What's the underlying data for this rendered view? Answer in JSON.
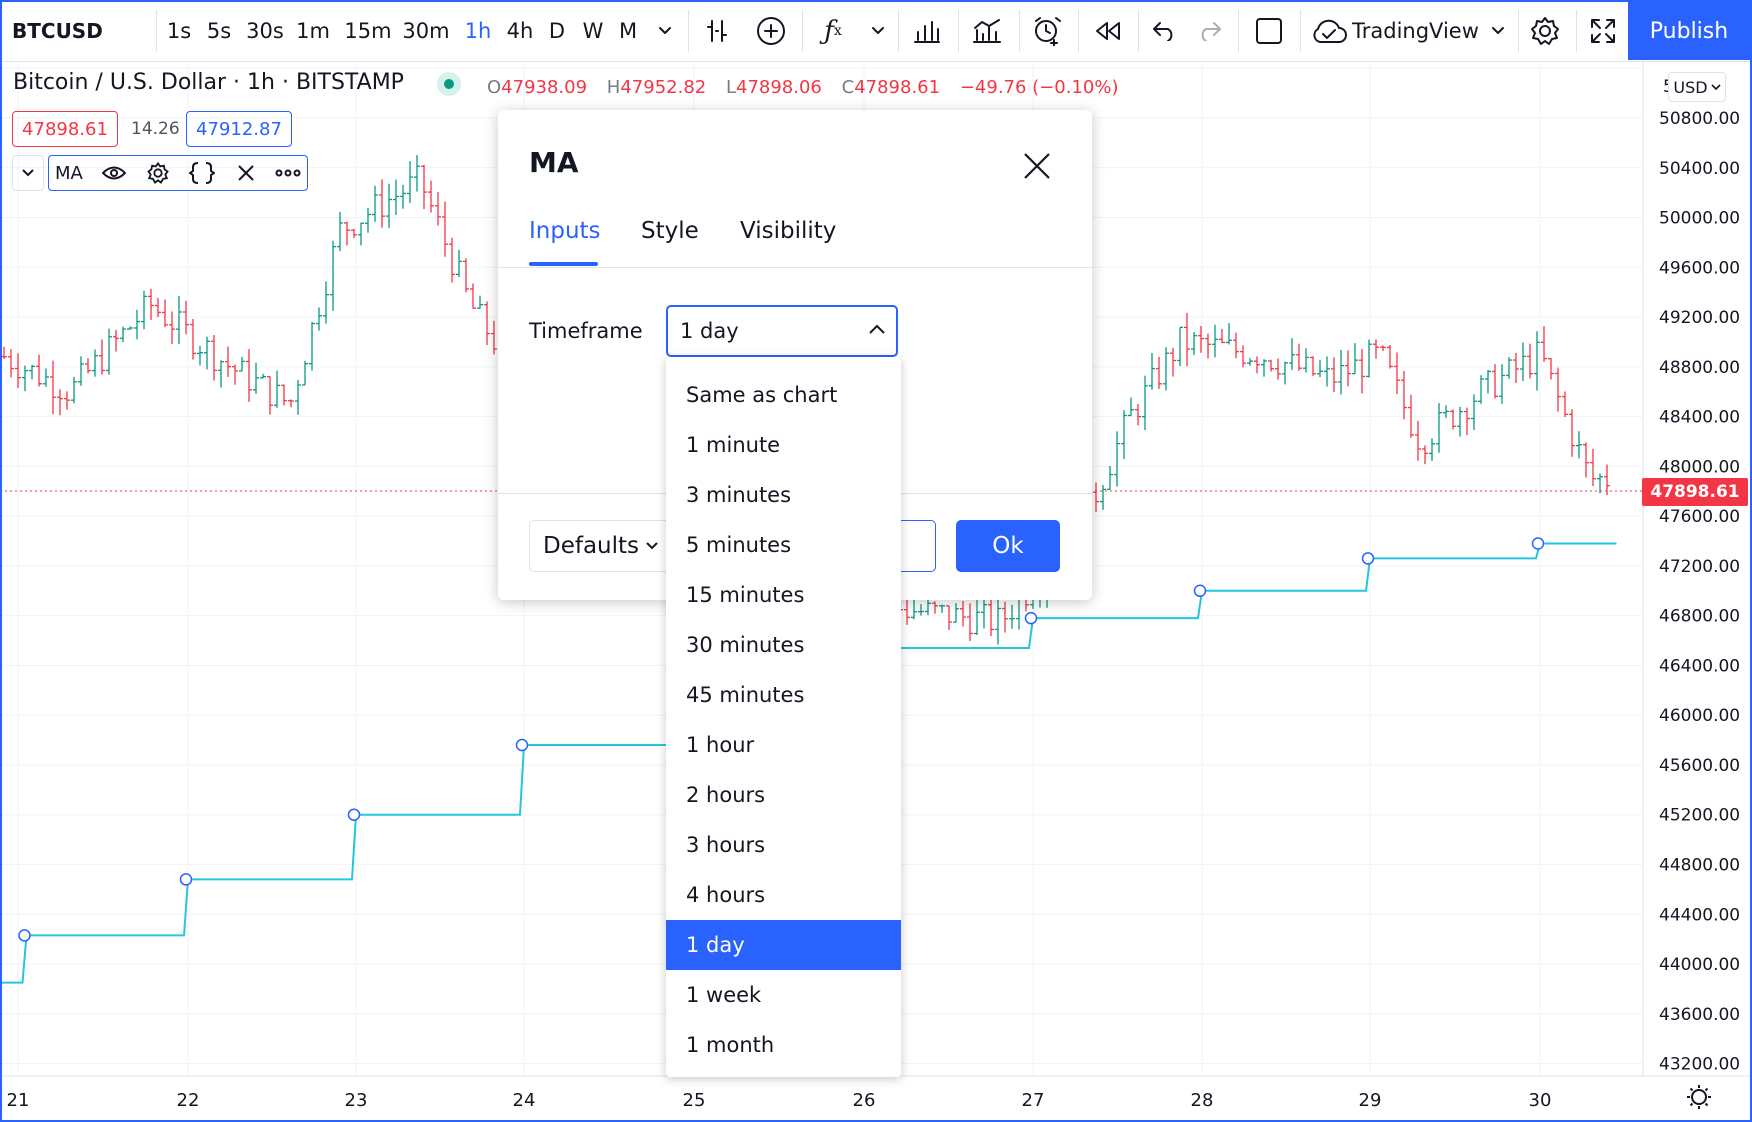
{
  "toolbar": {
    "symbol": "BTCUSD",
    "intervals": [
      "1s",
      "5s",
      "30s",
      "1m",
      "15m",
      "30m",
      "1h",
      "4h",
      "D",
      "W",
      "M"
    ],
    "selected_interval": "1h",
    "layout_name": "TradingView",
    "publish_label": "Publish"
  },
  "legend": {
    "title": "Bitcoin / U.S. Dollar · 1h · BITSTAMP",
    "ohlc": {
      "o_label": "O",
      "o": "47938.09",
      "h_label": "H",
      "h": "47952.82",
      "l_label": "L",
      "l": "47898.06",
      "c_label": "C",
      "c": "47898.61",
      "change": "−49.76 (−0.10%)"
    },
    "sell_price": "47898.61",
    "spread": "14.26",
    "buy_price": "47912.87",
    "indicator_name": "MA"
  },
  "price_scale": {
    "currency": "USD",
    "top_partial_label": "5",
    "labels": [
      "50800.00",
      "50400.00",
      "50000.00",
      "49600.00",
      "49200.00",
      "48800.00",
      "48400.00",
      "48000.00",
      "47600.00",
      "47200.00",
      "46800.00",
      "46400.00",
      "46000.00",
      "45600.00",
      "45200.00",
      "44800.00",
      "44400.00",
      "44000.00",
      "43600.00",
      "43200.00"
    ],
    "last_price": "47898.61"
  },
  "time_scale": {
    "labels": [
      "21",
      "22",
      "23",
      "24",
      "25",
      "26",
      "27",
      "28",
      "29",
      "30"
    ]
  },
  "colors": {
    "accent": "#2962ff",
    "up": "#089981",
    "down": "#f23645",
    "ma_line": "#26c6da"
  },
  "chart_data": {
    "type": "line",
    "title": "Bitcoin / U.S. Dollar · 1h · BITSTAMP",
    "ylim": [
      43100,
      51250
    ],
    "x_ticks": [
      "21",
      "22",
      "23",
      "24",
      "25",
      "26",
      "27",
      "28",
      "29",
      "30"
    ],
    "series": [
      {
        "name": "MA",
        "style": "step",
        "x": [
          "21",
          "21.05",
          "22",
          "23",
          "24",
          "26",
          "27",
          "28",
          "29",
          "30",
          "30.45"
        ],
        "values": [
          43850,
          44230,
          44680,
          45200,
          45760,
          46540,
          46780,
          47000,
          47260,
          47380,
          47380
        ]
      }
    ],
    "price_range_visible": {
      "min": 46300,
      "max": 50600
    },
    "last_price": 47898.61
  },
  "dialog": {
    "title": "MA",
    "tabs": [
      "Inputs",
      "Style",
      "Visibility"
    ],
    "active_tab": "Inputs",
    "timeframe_label": "Timeframe",
    "timeframe_value": "1 day",
    "defaults_label": "Defaults",
    "ok_label": "Ok"
  },
  "dropdown": {
    "options": [
      "Same as chart",
      "1 minute",
      "3 minutes",
      "5 minutes",
      "15 minutes",
      "30 minutes",
      "45 minutes",
      "1 hour",
      "2 hours",
      "3 hours",
      "4 hours",
      "1 day",
      "1 week",
      "1 month"
    ],
    "selected": "1 day"
  }
}
